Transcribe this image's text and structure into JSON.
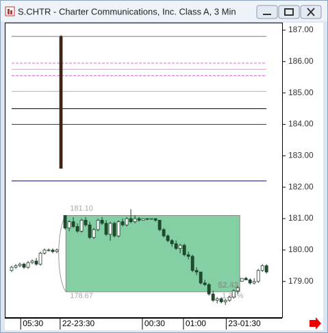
{
  "chart_data": {
    "type": "candlestick",
    "title": "S.CHTR - Charter Communications, Inc. Class A, 3 Min",
    "x": [
      0,
      1,
      2,
      3,
      4,
      5,
      6,
      7,
      8,
      9,
      10,
      11,
      12,
      13,
      14,
      15,
      16,
      17,
      18,
      19,
      20,
      21,
      22,
      23,
      24,
      25,
      26,
      27,
      28,
      29,
      30,
      31,
      32,
      33,
      34,
      35,
      36,
      37,
      38,
      39,
      40,
      41,
      42,
      43,
      44,
      45,
      46,
      47,
      48,
      49,
      50,
      51,
      52,
      53,
      54,
      55,
      56,
      57,
      58,
      59,
      60,
      61,
      62
    ],
    "open": [
      179.35,
      179.45,
      179.5,
      179.55,
      179.45,
      179.6,
      179.65,
      179.55,
      179.9,
      180.0,
      180.0,
      179.95,
      186.8,
      181.1,
      180.7,
      180.9,
      180.75,
      180.6,
      180.95,
      180.8,
      180.4,
      180.65,
      180.95,
      180.85,
      180.5,
      180.85,
      180.45,
      180.9,
      180.8,
      181.0,
      180.9,
      181.0,
      180.95,
      181.0,
      181.0,
      181.0,
      180.95,
      180.65,
      180.45,
      180.3,
      180.2,
      180.05,
      180.15,
      179.85,
      179.8,
      179.35,
      179.3,
      178.95,
      178.9,
      178.6,
      178.4,
      178.45,
      178.35,
      178.4,
      178.5,
      178.7,
      179.0,
      179.1,
      179.05,
      178.95,
      179.0,
      179.35,
      179.5
    ],
    "high": [
      179.5,
      179.55,
      179.6,
      179.6,
      179.65,
      179.7,
      179.75,
      179.95,
      180.05,
      180.05,
      180.05,
      180.05,
      186.85,
      181.1,
      180.95,
      181.05,
      180.85,
      181.0,
      181.05,
      180.9,
      180.7,
      181.0,
      181.05,
      180.95,
      180.9,
      180.9,
      180.95,
      181.0,
      181.05,
      181.3,
      181.1,
      181.05,
      181.0,
      181.0,
      181.0,
      181.0,
      180.95,
      180.7,
      180.5,
      180.35,
      180.3,
      180.2,
      180.2,
      179.95,
      179.85,
      179.45,
      179.3,
      179.05,
      178.95,
      178.7,
      178.5,
      178.5,
      178.45,
      178.55,
      178.75,
      178.85,
      179.1,
      179.15,
      179.1,
      179.1,
      179.4,
      179.55,
      179.55
    ],
    "low": [
      179.3,
      179.4,
      179.45,
      179.4,
      179.4,
      179.55,
      179.5,
      179.5,
      179.85,
      179.95,
      179.9,
      179.9,
      182.6,
      180.65,
      180.6,
      180.7,
      180.55,
      180.55,
      180.75,
      180.35,
      180.35,
      180.6,
      180.8,
      180.45,
      180.3,
      180.4,
      180.4,
      180.75,
      180.75,
      180.85,
      180.85,
      180.9,
      180.95,
      180.95,
      181.0,
      180.9,
      180.6,
      180.4,
      180.25,
      180.1,
      180.0,
      179.9,
      179.8,
      179.7,
      179.3,
      179.2,
      178.9,
      178.85,
      178.55,
      178.35,
      178.3,
      178.3,
      178.25,
      178.35,
      178.45,
      178.6,
      179.0,
      179.05,
      178.9,
      178.9,
      178.95,
      179.3,
      179.25
    ],
    "close": [
      179.45,
      179.5,
      179.55,
      179.45,
      179.6,
      179.65,
      179.55,
      179.9,
      180.0,
      180.0,
      179.95,
      180.0,
      182.6,
      180.7,
      180.9,
      180.75,
      180.6,
      180.95,
      180.8,
      180.4,
      180.65,
      180.95,
      180.85,
      180.5,
      180.85,
      180.45,
      180.9,
      180.8,
      181.0,
      180.9,
      181.0,
      180.95,
      181.0,
      180.98,
      181.0,
      180.95,
      180.65,
      180.45,
      180.3,
      180.2,
      180.05,
      180.15,
      179.85,
      179.8,
      179.35,
      179.3,
      178.95,
      178.9,
      178.6,
      178.4,
      178.45,
      178.35,
      178.4,
      178.5,
      178.7,
      178.8,
      179.1,
      179.05,
      178.95,
      179.0,
      179.35,
      179.5,
      179.3
    ],
    "up_color": "#ffffff",
    "down_color": "#1e4d2b",
    "xlim": [
      -1.5,
      65.8
    ],
    "xticks": [
      {
        "value": 2.2,
        "label": "05:30"
      },
      {
        "value": 11.8,
        "label": "22-23:30"
      },
      {
        "value": 31.8,
        "label": "00:30"
      },
      {
        "value": 41.8,
        "label": "01:00"
      },
      {
        "value": 52.2,
        "label": "23-01:30"
      }
    ],
    "ylim": [
      177.86,
      187.24
    ],
    "yticks": [
      {
        "value": 179,
        "label": "179.00"
      },
      {
        "value": 180,
        "label": "180.00"
      },
      {
        "value": 181,
        "label": "181.00"
      },
      {
        "value": 182,
        "label": "182.00"
      },
      {
        "value": 183,
        "label": "183.00"
      },
      {
        "value": 184,
        "label": "184.00"
      },
      {
        "value": 185,
        "label": "185.00"
      },
      {
        "value": 186,
        "label": "186.00"
      },
      {
        "value": 187,
        "label": "187.00"
      }
    ],
    "hlines": [
      {
        "value": 186.8,
        "color": "#7a7a7a",
        "dashed": false
      },
      {
        "value": 185.95,
        "color": "#d96fd0",
        "dashed": true
      },
      {
        "value": 185.75,
        "color": "#e98ee0",
        "dashed": false
      },
      {
        "value": 185.55,
        "color": "#d96fd0",
        "dashed": true
      },
      {
        "value": 185.05,
        "color": "#e98ee0",
        "dashed": false
      },
      {
        "value": 184.5,
        "color": "#000000",
        "dashed": false
      },
      {
        "value": 184.0,
        "color": "#cc0000",
        "dashed": false
      },
      {
        "value": 182.2,
        "color": "#000080",
        "dashed": false
      }
    ],
    "range_box": {
      "x_start": 13.2,
      "x_end": 55.5,
      "color": "#5cbf85",
      "high": {
        "value": 181.1,
        "label": "181.10"
      },
      "low": {
        "value": 178.67,
        "label": "178.67"
      },
      "change": {
        "value": 2.43,
        "label": "$2.43"
      },
      "percent": {
        "value": 1.34,
        "label": "1.34%"
      }
    }
  }
}
